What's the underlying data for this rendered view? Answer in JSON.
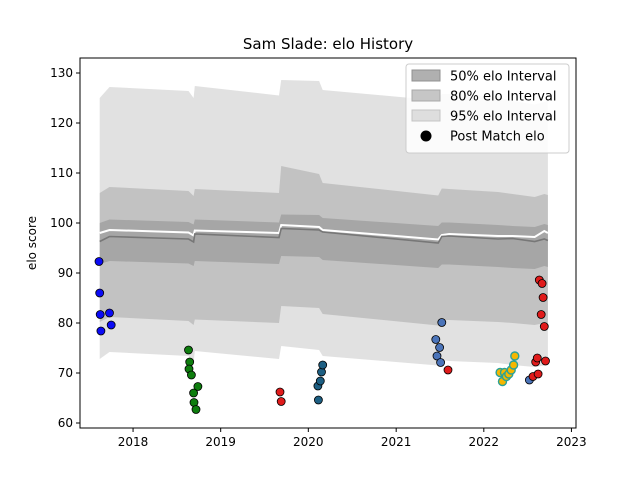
{
  "chart_data": {
    "type": "scatter",
    "title": "Sam Slade: elo History",
    "xlabel": "",
    "ylabel": "elo score",
    "xlim": [
      "2017-05-25",
      "2023-01-20"
    ],
    "ylim": [
      59,
      133
    ],
    "xticks": [
      {
        "value": "2018-01-01",
        "label": "2018"
      },
      {
        "value": "2019-01-01",
        "label": "2019"
      },
      {
        "value": "2020-01-01",
        "label": "2020"
      },
      {
        "value": "2021-01-01",
        "label": "2021"
      },
      {
        "value": "2022-01-01",
        "label": "2022"
      },
      {
        "value": "2023-01-01",
        "label": "2023"
      }
    ],
    "yticks": [
      60,
      70,
      80,
      90,
      100,
      110,
      120,
      130
    ],
    "grid": false,
    "legend": {
      "placement": "top-right",
      "entries": [
        {
          "label": "50% elo Interval",
          "color": "#9e9e9e"
        },
        {
          "label": "80% elo Interval",
          "color": "#b8b8b8"
        },
        {
          "label": "95% elo Interval",
          "color": "#d4d4d4"
        },
        {
          "label": "Post Match elo",
          "color": "#000000"
        }
      ]
    },
    "bands": {
      "dates": [
        "2017-08-15",
        "2017-09-25",
        "2018-08-20",
        "2018-09-10",
        "2018-09-15",
        "2019-09-01",
        "2019-09-10",
        "2020-02-15",
        "2020-03-01",
        "2021-06-25",
        "2021-07-10",
        "2021-08-10",
        "2022-03-01",
        "2022-05-01",
        "2022-08-01",
        "2022-09-10",
        "2022-09-25"
      ],
      "center": [
        96.3,
        97.3,
        96.8,
        96.2,
        97.8,
        97.1,
        98.9,
        98.6,
        98.2,
        96.0,
        97.3,
        97.4,
        96.8,
        96.9,
        96.3,
        96.8,
        96.5
      ],
      "mean": [
        98.0,
        98.6,
        98.1,
        97.5,
        98.5,
        98.0,
        99.6,
        99.2,
        98.6,
        96.7,
        97.6,
        97.8,
        97.4,
        97.4,
        97.2,
        98.4,
        98.0
      ],
      "i50": {
        "lo": [
          91.8,
          92.4,
          91.9,
          91.4,
          92.4,
          91.8,
          93.4,
          93.2,
          92.6,
          91.0,
          91.7,
          91.7,
          91.2,
          91.0,
          90.8,
          91.4,
          91.2
        ],
        "hi": [
          100.0,
          100.7,
          100.2,
          99.7,
          100.7,
          100.1,
          101.7,
          101.6,
          101.0,
          99.4,
          100.1,
          100.1,
          99.6,
          99.4,
          99.2,
          99.8,
          99.6
        ]
      },
      "i80": {
        "lo": [
          80.2,
          81.2,
          80.4,
          79.6,
          80.7,
          80.0,
          83.4,
          83.0,
          81.8,
          79.5,
          80.6,
          80.6,
          80.2,
          80.0,
          79.6,
          80.0,
          80.0
        ],
        "hi": [
          106.0,
          107.2,
          106.4,
          105.4,
          106.8,
          106.0,
          111.4,
          109.8,
          108.0,
          105.5,
          106.9,
          106.8,
          106.2,
          105.8,
          105.2,
          105.8,
          105.6
        ],
        "note": "center and mean lines"
      },
      "i95": {
        "lo": [
          72.8,
          74.2,
          73.4,
          72.0,
          74.4,
          72.8,
          75.4,
          74.6,
          73.4,
          71.5,
          72.6,
          72.4,
          72.0,
          71.6,
          71.2,
          71.5,
          71.8
        ],
        "hi": [
          125.0,
          127.2,
          126.4,
          125.0,
          127.4,
          125.5,
          128.6,
          128.4,
          126.6,
          124.5,
          125.8,
          125.8,
          125.2,
          124.4,
          123.7,
          124.2,
          124.5
        ]
      }
    },
    "series": [
      {
        "color": "#0b0bf5",
        "points": [
          [
            "2017-08-12",
            92.3
          ],
          [
            "2017-08-15",
            86.0
          ],
          [
            "2017-08-17",
            81.7
          ],
          [
            "2017-08-20",
            78.4
          ],
          [
            "2017-09-25",
            82.0
          ],
          [
            "2017-10-02",
            79.6
          ]
        ]
      },
      {
        "color": "#0e7d0e",
        "points": [
          [
            "2018-08-20",
            74.6
          ],
          [
            "2018-08-25",
            72.2
          ],
          [
            "2018-08-22",
            70.8
          ],
          [
            "2018-09-01",
            69.6
          ],
          [
            "2018-09-10",
            66.0
          ],
          [
            "2018-09-12",
            64.1
          ],
          [
            "2018-09-20",
            62.7
          ],
          [
            "2018-09-28",
            67.3
          ]
        ]
      },
      {
        "color": "#e01b1b",
        "points": [
          [
            "2019-09-05",
            66.2
          ],
          [
            "2019-09-10",
            64.3
          ]
        ]
      },
      {
        "color": "#1d5f83",
        "points": [
          [
            "2020-02-10",
            67.4
          ],
          [
            "2020-02-12",
            64.6
          ],
          [
            "2020-02-20",
            68.4
          ],
          [
            "2020-02-25",
            70.2
          ],
          [
            "2020-03-01",
            71.6
          ]
        ]
      },
      {
        "color": "#4b74b9",
        "points": [
          [
            "2021-06-15",
            76.7
          ],
          [
            "2021-06-20",
            73.4
          ],
          [
            "2021-07-01",
            75.1
          ],
          [
            "2021-07-05",
            72.1
          ],
          [
            "2021-07-10",
            80.1
          ]
        ]
      },
      {
        "color": "#e01b1b",
        "points": [
          [
            "2021-08-05",
            70.6
          ]
        ]
      },
      {
        "color": "#f5b700",
        "edge": "#2aa198",
        "points": [
          [
            "2022-03-10",
            70.1
          ],
          [
            "2022-03-20",
            68.3
          ],
          [
            "2022-03-28",
            70.1
          ],
          [
            "2022-04-05",
            69.3
          ],
          [
            "2022-04-15",
            69.8
          ],
          [
            "2022-04-25",
            70.6
          ],
          [
            "2022-05-05",
            71.6
          ],
          [
            "2022-05-10",
            73.4
          ]
        ]
      },
      {
        "color": "#4b74b9",
        "points": [
          [
            "2022-07-10",
            68.6
          ]
        ]
      },
      {
        "color": "#e01b1b",
        "points": [
          [
            "2022-07-25",
            69.3
          ],
          [
            "2022-08-05",
            72.2
          ],
          [
            "2022-08-12",
            73.0
          ],
          [
            "2022-08-15",
            69.8
          ],
          [
            "2022-08-20",
            88.6
          ],
          [
            "2022-08-28",
            81.7
          ],
          [
            "2022-09-01",
            87.9
          ],
          [
            "2022-09-05",
            85.1
          ],
          [
            "2022-09-10",
            79.3
          ],
          [
            "2022-09-15",
            72.4
          ]
        ]
      }
    ]
  }
}
